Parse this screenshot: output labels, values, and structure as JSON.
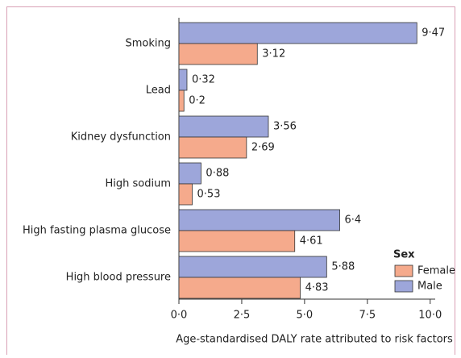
{
  "chart_data": {
    "type": "hbar",
    "categories": [
      "Smoking",
      "Lead",
      "Kidney dysfunction",
      "High sodium",
      "High fasting plasma glucose",
      "High blood pressure"
    ],
    "series": [
      {
        "name": "Female",
        "color": "#f5aa8c",
        "values": [
          3.12,
          0.2,
          2.69,
          0.53,
          4.61,
          4.83
        ],
        "value_labels": [
          "3·12",
          "0·2",
          "2·69",
          "0·53",
          "4·61",
          "4·83"
        ]
      },
      {
        "name": "Male",
        "color": "#9da6da",
        "values": [
          9.47,
          0.32,
          3.56,
          0.88,
          6.4,
          5.88
        ],
        "value_labels": [
          "9·47",
          "0·32",
          "3·56",
          "0·88",
          "6·4",
          "5·88"
        ]
      }
    ],
    "xlabel": "Age-standardised DALY rate attributed to risk factors",
    "legend_title": "Sex",
    "legend": "lower-right",
    "xlim": [
      0,
      10.2
    ],
    "xticks": [
      {
        "value": 0,
        "label": "0·0"
      },
      {
        "value": 2.5,
        "label": "2·5"
      },
      {
        "value": 5,
        "label": "5·0"
      },
      {
        "value": 7.5,
        "label": "7·5"
      },
      {
        "value": 10,
        "label": "10·0"
      }
    ]
  }
}
